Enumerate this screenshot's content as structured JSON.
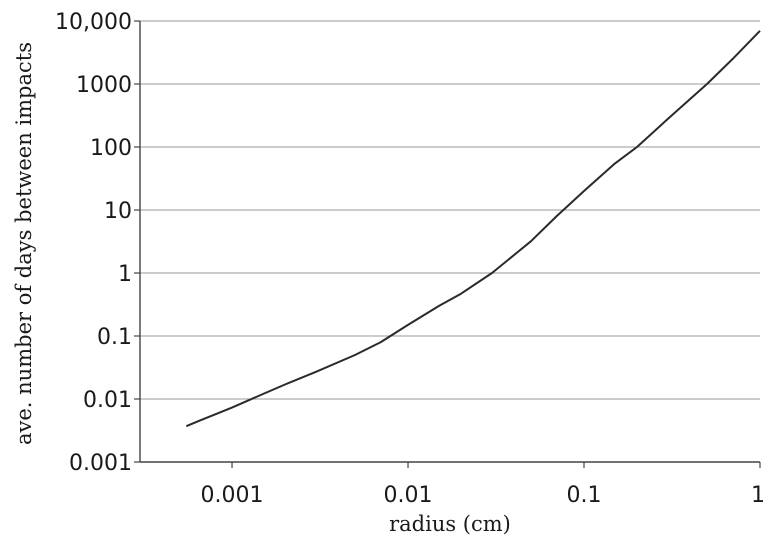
{
  "chart_data": {
    "type": "line",
    "xlabel": "radius (cm)",
    "ylabel": "ave. number of days between impacts",
    "x_scale": "log",
    "y_scale": "log",
    "xlim": [
      0.0003,
      1
    ],
    "ylim": [
      0.001,
      10000
    ],
    "grid": "horizontal",
    "x_ticks": [
      {
        "value": 0.001,
        "label": "0.001"
      },
      {
        "value": 0.01,
        "label": "0.01"
      },
      {
        "value": 0.1,
        "label": "0.1"
      },
      {
        "value": 1,
        "label": "1"
      }
    ],
    "y_ticks": [
      {
        "value": 0.001,
        "label": "0.001"
      },
      {
        "value": 0.01,
        "label": "0.01"
      },
      {
        "value": 0.1,
        "label": "0.1"
      },
      {
        "value": 1,
        "label": "1"
      },
      {
        "value": 10,
        "label": "10"
      },
      {
        "value": 100,
        "label": "100"
      },
      {
        "value": 1000,
        "label": "1000"
      },
      {
        "value": 10000,
        "label": "10,000"
      }
    ],
    "series": [
      {
        "color": "#2a2a2a",
        "x": [
          0.00055,
          0.00065,
          0.0008,
          0.001,
          0.0015,
          0.002,
          0.003,
          0.005,
          0.007,
          0.01,
          0.015,
          0.02,
          0.03,
          0.05,
          0.07,
          0.1,
          0.15,
          0.2,
          0.3,
          0.5,
          0.7,
          1
        ],
        "y": [
          0.0037,
          0.0045,
          0.0057,
          0.0073,
          0.012,
          0.017,
          0.027,
          0.05,
          0.08,
          0.15,
          0.3,
          0.47,
          1.0,
          3.2,
          8.0,
          20,
          55,
          100,
          280,
          1000,
          2500,
          7000
        ]
      }
    ]
  }
}
